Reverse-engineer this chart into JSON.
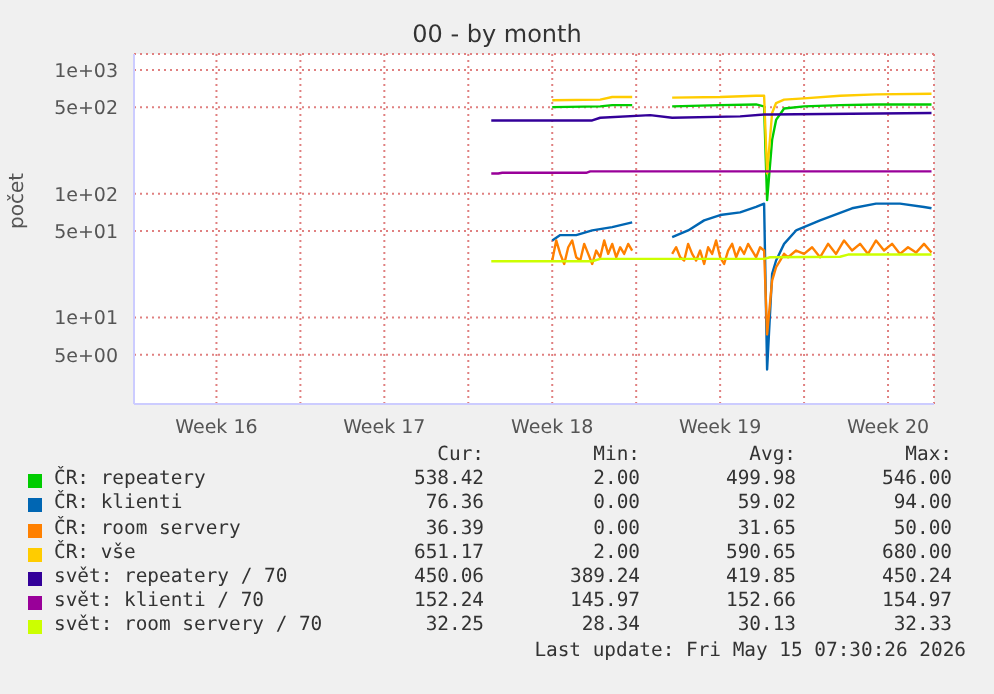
{
  "chart_data": {
    "type": "line",
    "title": "00 - by month",
    "ylabel": "počet",
    "log": "y",
    "grid": true,
    "legend": "bottom",
    "marker": "none",
    "line_style": "solid",
    "xlim": [
      "2026-04-12T01:30",
      "2026-05-15T10:00"
    ],
    "xticks": [
      {
        "value": "2026-04-15T12:00",
        "label": "Week 16"
      },
      {
        "value": "2026-04-19",
        "label": null
      },
      {
        "value": "2026-04-22T12:00",
        "label": "Week 17"
      },
      {
        "value": "2026-04-26",
        "label": null
      },
      {
        "value": "2026-04-29T12:00",
        "label": "Week 18"
      },
      {
        "value": "2026-05-03",
        "label": null
      },
      {
        "value": "2026-05-06T12:00",
        "label": "Week 19"
      },
      {
        "value": "2026-05-10",
        "label": null
      },
      {
        "value": "2026-05-13T12:00",
        "label": "Week 20"
      }
    ],
    "ylim": [
      2,
      1350
    ],
    "yticks": [
      {
        "value": 5,
        "label": "5e+00"
      },
      {
        "value": 10,
        "label": "1e+01"
      },
      {
        "value": 50,
        "label": "5e+01"
      },
      {
        "value": 100,
        "label": "1e+02"
      },
      {
        "value": 500,
        "label": "5e+02"
      },
      {
        "value": 1000,
        "label": "1e+03"
      }
    ],
    "series": [
      {
        "name": "ČR: repeatery",
        "color": "#00cc00",
        "x": [
          "2026-04-29T12:00",
          "2026-05-01T12:00",
          "2026-05-02T00:00",
          "2026-05-02T20:00",
          "2026-05-03T12:00",
          "2026-05-04T12:00",
          "2026-05-06T12:00",
          "2026-05-08T00:00",
          "2026-05-08T08:00",
          "2026-05-08T11:00",
          "2026-05-08T16:00",
          "2026-05-08T20:00",
          "2026-05-09T04:00",
          "2026-05-10T00:00",
          "2026-05-11T12:00",
          "2026-05-13T00:00",
          "2026-05-15T07:30"
        ],
        "values": [
          502,
          509,
          521,
          521,
          null,
          509,
          521,
          528,
          509,
          89,
          273,
          396,
          490,
          509,
          521,
          528,
          528
        ]
      },
      {
        "name": "ČR: klienti",
        "color": "#0066b3",
        "x": [
          "2026-04-29T12:00",
          "2026-04-29T20:00",
          "2026-04-30T12:00",
          "2026-05-01T04:00",
          "2026-05-02T00:00",
          "2026-05-02T20:00",
          "2026-05-03T12:00",
          "2026-05-04T12:00",
          "2026-05-05T04:00",
          "2026-05-05T20:00",
          "2026-05-06T12:00",
          "2026-05-07T08:00",
          "2026-05-08T00:00",
          "2026-05-08T08:00",
          "2026-05-08T11:00",
          "2026-05-08T16:00",
          "2026-05-08T20:00",
          "2026-05-09T04:00",
          "2026-05-09T16:00",
          "2026-05-10T16:00",
          "2026-05-12T00:00",
          "2026-05-13T00:00",
          "2026-05-14T00:00",
          "2026-05-15T00:00",
          "2026-05-15T07:30"
        ],
        "values": [
          42,
          46.4,
          46.4,
          50.6,
          53.8,
          58.7,
          null,
          44.7,
          50.6,
          61,
          67.4,
          70.8,
          78.3,
          83.3,
          3.8,
          22.5,
          28.9,
          39.4,
          50.6,
          61,
          76.4,
          83.3,
          83.3,
          78.3,
          76.4
        ]
      },
      {
        "name": "ČR: room servery",
        "color": "#ff8000",
        "x": [
          "2026-04-29T12:00",
          "2026-04-29T16:00",
          "2026-04-29T20:00",
          "2026-04-30T00:00",
          "2026-04-30T04:00",
          "2026-04-30T08:00",
          "2026-04-30T12:00",
          "2026-04-30T16:00",
          "2026-04-30T20:00",
          "2026-05-01T00:00",
          "2026-05-01T04:00",
          "2026-05-01T08:00",
          "2026-05-01T12:00",
          "2026-05-01T16:00",
          "2026-05-01T20:00",
          "2026-05-02T00:00",
          "2026-05-02T04:00",
          "2026-05-02T08:00",
          "2026-05-02T12:00",
          "2026-05-02T16:00",
          "2026-05-02T20:00",
          "2026-05-03T12:00",
          "2026-05-04T12:00",
          "2026-05-04T16:00",
          "2026-05-04T20:00",
          "2026-05-05T00:00",
          "2026-05-05T04:00",
          "2026-05-05T08:00",
          "2026-05-05T12:00",
          "2026-05-05T16:00",
          "2026-05-05T20:00",
          "2026-05-06T00:00",
          "2026-05-06T04:00",
          "2026-05-06T08:00",
          "2026-05-06T12:00",
          "2026-05-06T16:00",
          "2026-05-06T20:00",
          "2026-05-07T00:00",
          "2026-05-07T04:00",
          "2026-05-07T08:00",
          "2026-05-07T12:00",
          "2026-05-07T16:00",
          "2026-05-07T20:00",
          "2026-05-08T00:00",
          "2026-05-08T04:00",
          "2026-05-08T08:00",
          "2026-05-08T11:00",
          "2026-05-08T16:00",
          "2026-05-08T20:00",
          "2026-05-09T00:00",
          "2026-05-09T04:00",
          "2026-05-09T08:00",
          "2026-05-09T16:00",
          "2026-05-10T00:00",
          "2026-05-10T08:00",
          "2026-05-10T16:00",
          "2026-05-11T00:00",
          "2026-05-11T08:00",
          "2026-05-11T16:00",
          "2026-05-12T00:00",
          "2026-05-12T08:00",
          "2026-05-12T16:00",
          "2026-05-13T00:00",
          "2026-05-13T08:00",
          "2026-05-13T16:00",
          "2026-05-14T00:00",
          "2026-05-14T08:00",
          "2026-05-14T16:00",
          "2026-05-15T00:00",
          "2026-05-15T07:30"
        ],
        "values": [
          28.9,
          42,
          32.7,
          27.1,
          37,
          42,
          30.7,
          28.9,
          39.4,
          32.7,
          27.1,
          34.8,
          30.7,
          42,
          32.7,
          39.4,
          30.7,
          37,
          32.7,
          39.4,
          34.8,
          null,
          32.7,
          37,
          30.7,
          28.9,
          39.4,
          32.7,
          28.9,
          34.8,
          27.1,
          37,
          32.7,
          42,
          30.7,
          27.1,
          34.8,
          39.4,
          30.7,
          37,
          32.7,
          39.4,
          34.8,
          30.7,
          37,
          34.8,
          7.3,
          19.9,
          25.5,
          28.9,
          32.7,
          30.7,
          34.8,
          32.7,
          37,
          30.7,
          39.4,
          32.7,
          42,
          34.8,
          39.4,
          32.7,
          42,
          34.8,
          39.4,
          32.7,
          37,
          33.5,
          39.4,
          33.5
        ]
      },
      {
        "name": "ČR: vše",
        "color": "#ffcc00",
        "x": [
          "2026-04-29T12:00",
          "2026-05-01T12:00",
          "2026-05-02T00:00",
          "2026-05-02T20:00",
          "2026-05-03T12:00",
          "2026-05-04T12:00",
          "2026-05-06T12:00",
          "2026-05-08T00:00",
          "2026-05-08T08:00",
          "2026-05-08T11:00",
          "2026-05-08T16:00",
          "2026-05-08T20:00",
          "2026-05-09T04:00",
          "2026-05-10T00:00",
          "2026-05-11T12:00",
          "2026-05-13T00:00",
          "2026-05-15T07:30"
        ],
        "values": [
          570,
          577,
          606,
          606,
          null,
          599,
          606,
          621,
          621,
          146,
          450,
          542,
          577,
          591,
          621,
          637,
          645
        ]
      },
      {
        "name": "svět: repeatery / 70",
        "color": "#330099",
        "x": [
          "2026-04-26T23:00",
          "2026-05-01T04:00",
          "2026-05-01T12:00",
          "2026-05-03T14:00",
          "2026-05-04T12:00",
          "2026-05-07T08:00",
          "2026-05-08T08:00",
          "2026-05-08T14:00",
          "2026-05-15T07:30"
        ],
        "values": [
          392,
          392,
          412,
          433,
          412,
          423,
          438,
          438,
          450
        ]
      },
      {
        "name": "svět: klienti / 70",
        "color": "#990099",
        "x": [
          "2026-04-26T23:00",
          "2026-04-27T06:00",
          "2026-04-27T10:00",
          "2026-04-30T22:00",
          "2026-05-01T02:00",
          "2026-05-15T07:30"
        ],
        "values": [
          146,
          146,
          148,
          148,
          152,
          152
        ]
      },
      {
        "name": "svět: room servery / 70",
        "color": "#ccff00",
        "x": [
          "2026-04-26T23:00",
          "2026-05-01T04:00",
          "2026-05-01T12:00",
          "2026-05-08T08:00",
          "2026-05-08T14:00",
          "2026-05-11T12:00",
          "2026-05-11T20:00",
          "2026-05-15T07:30"
        ],
        "values": [
          28.5,
          28.5,
          29.8,
          29.8,
          30.7,
          31,
          32.3,
          32.3
        ]
      }
    ],
    "annotations": [
      "Cur:",
      "Min:",
      "Avg:",
      "Max:",
      "538.42",
      "2.00",
      "499.98",
      "546.00",
      "76.36",
      "0.00",
      "59.02",
      "94.00",
      "36.39",
      "0.00",
      "31.65",
      "50.00",
      "651.17",
      "2.00",
      "590.65",
      "680.00",
      "450.06",
      "389.24",
      "419.85",
      "450.24",
      "152.24",
      "145.97",
      "152.66",
      "154.97",
      "32.25",
      "28.34",
      "30.13",
      "32.33",
      "Last update: Fri May 15 07:30:26 2026"
    ]
  }
}
